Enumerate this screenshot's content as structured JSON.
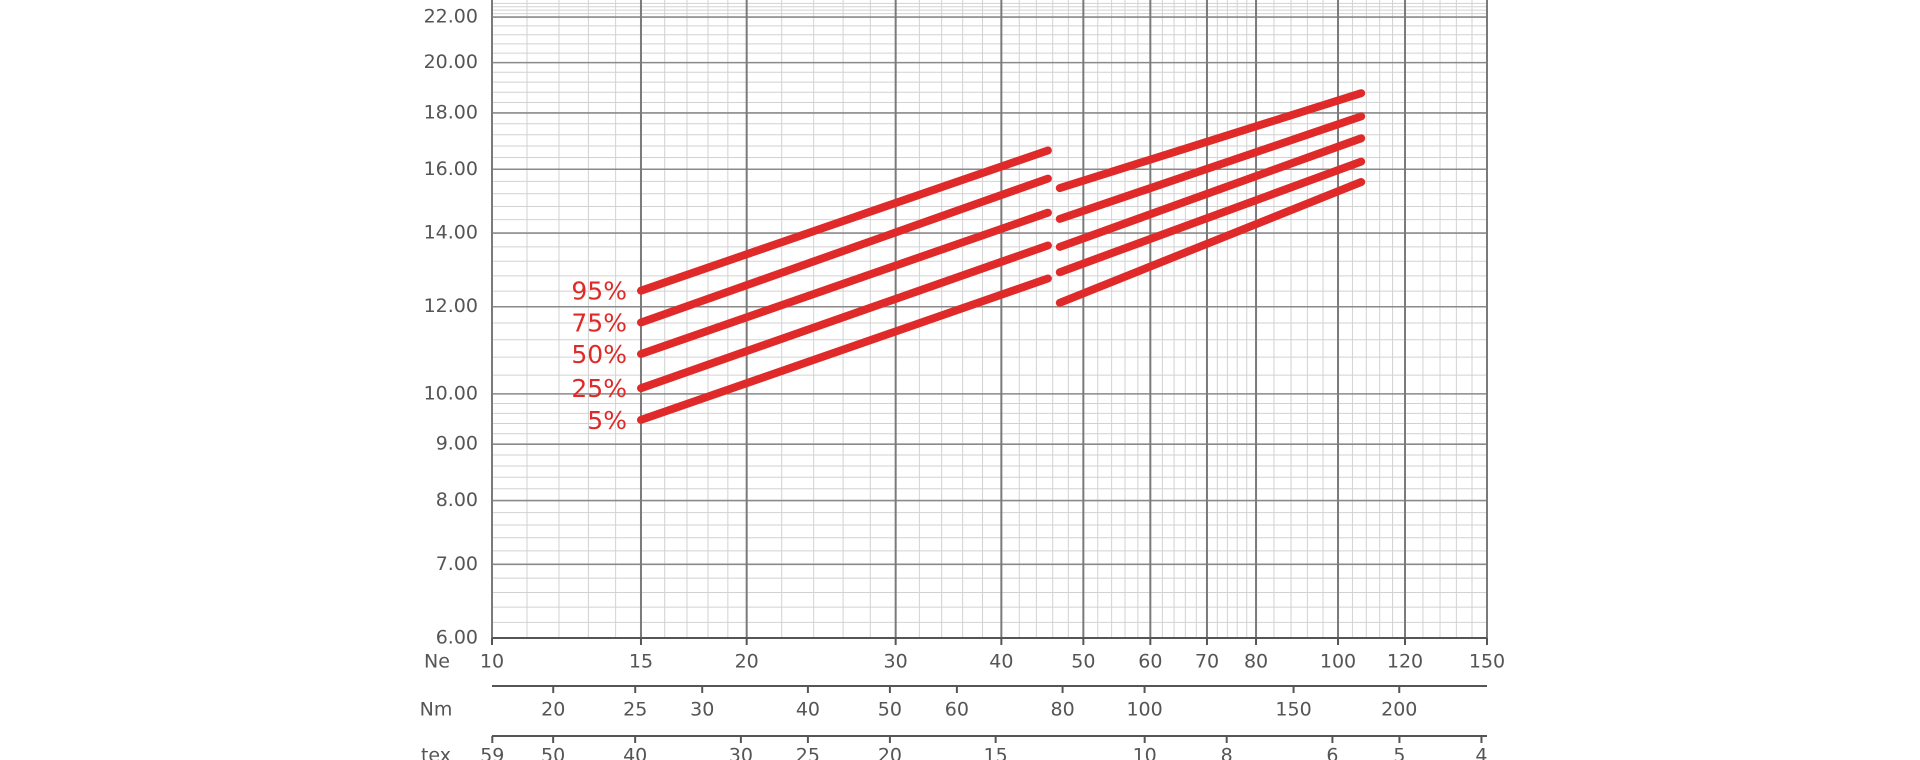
{
  "chart_data": {
    "type": "line",
    "x_scale": "log",
    "y_scale": "log",
    "xlabel": "Ne",
    "xlim": [
      10,
      150
    ],
    "xticks": [
      10,
      15,
      20,
      30,
      40,
      50,
      60,
      70,
      80,
      100,
      120,
      150
    ],
    "ylim": [
      6,
      22.8
    ],
    "yticks": [
      {
        "value": 6,
        "label": "6.00"
      },
      {
        "value": 7,
        "label": "7.00"
      },
      {
        "value": 8,
        "label": "8.00"
      },
      {
        "value": 9,
        "label": "9.00"
      },
      {
        "value": 10,
        "label": "10.00"
      },
      {
        "value": 12,
        "label": "12.00"
      },
      {
        "value": 14,
        "label": "14.00"
      },
      {
        "value": 16,
        "label": "16.00"
      },
      {
        "value": 18,
        "label": "18.00"
      },
      {
        "value": 20,
        "label": "20.00"
      },
      {
        "value": 22,
        "label": "22.00"
      }
    ],
    "grid": true,
    "minor_grid": true,
    "secondary_x_axes": [
      {
        "label": "Nm",
        "xlim": [
          16.93,
          253.95
        ],
        "xticks": [
          20,
          25,
          30,
          40,
          50,
          60,
          80,
          100,
          150,
          200
        ]
      },
      {
        "label": "tex",
        "xlim": [
          59.05,
          3.94
        ],
        "xticks": [
          59,
          50,
          40,
          30,
          25,
          20,
          15,
          10,
          8,
          6,
          5,
          4
        ]
      }
    ],
    "x": [
      15,
      45.4,
      null,
      46.9,
      106.5
    ],
    "series": [
      {
        "name": "95%",
        "color": "#e02a2a",
        "values": [
          12.41,
          16.64,
          null,
          15.38,
          18.76
        ]
      },
      {
        "name": "75%",
        "color": "#e02a2a",
        "values": [
          11.61,
          15.69,
          null,
          14.42,
          17.87
        ]
      },
      {
        "name": "50%",
        "color": "#e02a2a",
        "values": [
          10.87,
          14.61,
          null,
          13.6,
          17.07
        ]
      },
      {
        "name": "25%",
        "color": "#e02a2a",
        "values": [
          10.12,
          13.64,
          null,
          12.9,
          16.26
        ]
      },
      {
        "name": "5%",
        "color": "#e02a2a",
        "values": [
          9.47,
          12.73,
          null,
          12.1,
          15.58
        ]
      }
    ]
  }
}
